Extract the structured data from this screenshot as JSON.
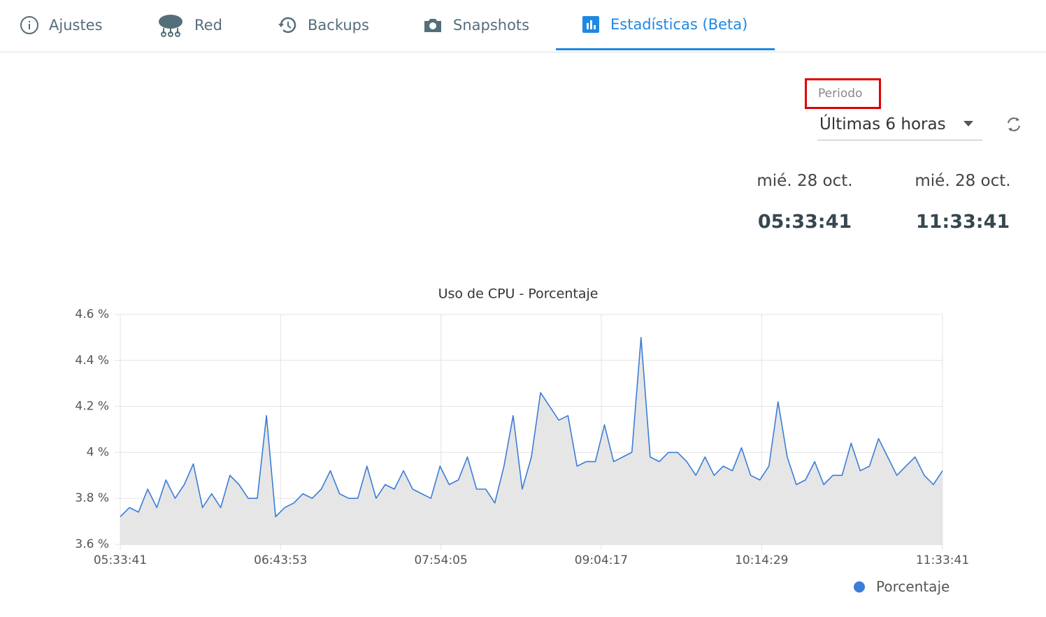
{
  "tabs": [
    "Ajustes",
    "Red",
    "Backups",
    "Snapshots",
    "Estadísticas (Beta)"
  ],
  "period": {
    "label": "Periodo",
    "value": "Últimas 6 horas"
  },
  "range": {
    "start_date": "mié. 28 oct.",
    "start_time": "05:33:41",
    "end_date": "mié. 28 oct.",
    "end_time": "11:33:41"
  },
  "chart_data": {
    "type": "area",
    "title": "Uso de CPU - Porcentaje",
    "x": [
      "05:33:41",
      "05:37:41",
      "05:41:41",
      "05:45:41",
      "05:49:41",
      "05:53:41",
      "05:57:41",
      "06:01:41",
      "06:05:41",
      "06:09:41",
      "06:13:41",
      "06:17:41",
      "06:21:41",
      "06:25:41",
      "06:29:41",
      "06:33:41",
      "06:37:41",
      "06:41:41",
      "06:45:41",
      "06:49:41",
      "06:53:41",
      "06:57:41",
      "07:01:41",
      "07:05:41",
      "07:09:41",
      "07:13:41",
      "07:17:41",
      "07:21:41",
      "07:25:41",
      "07:29:41",
      "07:33:41",
      "07:37:41",
      "07:41:41",
      "07:45:41",
      "07:49:41",
      "07:53:41",
      "07:57:41",
      "08:01:41",
      "08:05:41",
      "08:09:41",
      "08:13:41",
      "08:17:41",
      "08:21:41",
      "08:25:41",
      "08:29:41",
      "08:33:41",
      "08:37:41",
      "08:41:41",
      "08:45:41",
      "08:49:41",
      "08:53:41",
      "08:57:41",
      "09:01:41",
      "09:05:41",
      "09:09:41",
      "09:13:41",
      "09:17:41",
      "09:21:41",
      "09:25:41",
      "09:29:41",
      "09:33:41",
      "09:37:41",
      "09:41:41",
      "09:45:41",
      "09:49:41",
      "09:53:41",
      "09:57:41",
      "10:01:41",
      "10:05:41",
      "10:09:41",
      "10:13:41",
      "10:17:41",
      "10:21:41",
      "10:25:41",
      "10:29:41",
      "10:33:41",
      "10:37:41",
      "10:41:41",
      "10:45:41",
      "10:49:41",
      "10:53:41",
      "10:57:41",
      "11:01:41",
      "11:05:41",
      "11:09:41",
      "11:13:41",
      "11:17:41",
      "11:21:41",
      "11:25:41",
      "11:29:41",
      "11:33:41"
    ],
    "series": [
      {
        "name": "Porcentaje",
        "color": "#3b7dd8",
        "values": [
          3.72,
          3.76,
          3.74,
          3.84,
          3.76,
          3.88,
          3.8,
          3.86,
          3.95,
          3.76,
          3.82,
          3.76,
          3.9,
          3.86,
          3.8,
          3.8,
          4.16,
          3.72,
          3.76,
          3.78,
          3.82,
          3.8,
          3.84,
          3.92,
          3.82,
          3.8,
          3.8,
          3.94,
          3.8,
          3.86,
          3.84,
          3.92,
          3.84,
          3.82,
          3.8,
          3.94,
          3.86,
          3.88,
          3.98,
          3.84,
          3.84,
          3.78,
          3.94,
          4.16,
          3.84,
          3.98,
          4.26,
          4.2,
          4.14,
          4.16,
          3.94,
          3.96,
          3.96,
          4.12,
          3.96,
          3.98,
          4.0,
          4.5,
          3.98,
          3.96,
          4.0,
          4.0,
          3.96,
          3.9,
          3.98,
          3.9,
          3.94,
          3.92,
          4.02,
          3.9,
          3.88,
          3.94,
          4.22,
          3.98,
          3.86,
          3.88,
          3.96,
          3.86,
          3.9,
          3.9,
          4.04,
          3.92,
          3.94,
          4.06,
          3.98,
          3.9,
          3.94,
          3.98,
          3.9,
          3.86,
          3.92
        ]
      }
    ],
    "xlim": [
      "05:33:41",
      "11:33:41"
    ],
    "xticks": [
      "05:33:41",
      "06:43:53",
      "07:54:05",
      "09:04:17",
      "10:14:29",
      "11:33:41"
    ],
    "ylim": [
      3.6,
      4.6
    ],
    "yticks": [
      {
        "value": 3.6,
        "label": "3.6 %"
      },
      {
        "value": 3.8,
        "label": "3.8 %"
      },
      {
        "value": 4,
        "label": "4 %"
      },
      {
        "value": 4.2,
        "label": "4.2 %"
      },
      {
        "value": 4.4,
        "label": "4.4 %"
      },
      {
        "value": 4.6,
        "label": "4.6 %"
      }
    ],
    "grid": true,
    "fill": "#e6e6e6"
  }
}
